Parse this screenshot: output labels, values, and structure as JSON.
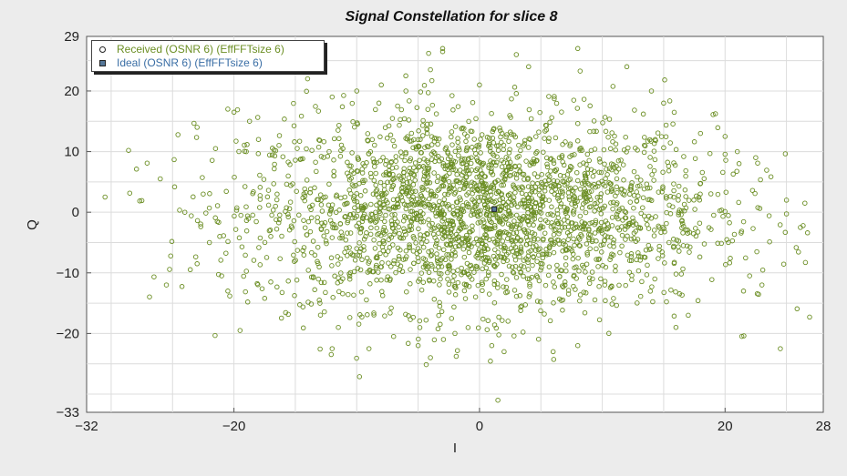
{
  "chart_data": {
    "type": "scatter",
    "title": "Signal Constellation for slice 8",
    "xlabel": "I",
    "ylabel": "Q",
    "xlim": [
      -32,
      28
    ],
    "ylim": [
      -33,
      29
    ],
    "x_ticks": [
      -32,
      -20,
      0,
      20,
      28
    ],
    "y_ticks": [
      29,
      20,
      10,
      0,
      -10,
      -20,
      -33
    ],
    "grid": true,
    "legend_position": "top-left",
    "series": [
      {
        "name": "Received (OSNR 6) (EffFFTsize 6)",
        "marker": "circle",
        "color": "#6b8e23",
        "distribution": "gaussian cloud, ~2600 points, center (0,0), sigma_I ~9.5, sigma_Q ~8",
        "points": [
          [
            -30.5,
            2.5
          ],
          [
            -26,
            5.5
          ],
          [
            -25.5,
            -12
          ],
          [
            -24,
            0
          ],
          [
            -23,
            14
          ],
          [
            -23,
            -8.5
          ],
          [
            -22.5,
            3
          ],
          [
            -22,
            -5
          ],
          [
            -21.5,
            10.5
          ],
          [
            -21,
            -10.5
          ],
          [
            -20.5,
            17
          ],
          [
            -20.5,
            -13
          ],
          [
            -20,
            16.5
          ],
          [
            -19.5,
            -19.5
          ],
          [
            -19,
            10
          ],
          [
            -18,
            12
          ],
          [
            -17,
            -11.5
          ],
          [
            -14,
            22
          ],
          [
            -13,
            -15
          ],
          [
            -12,
            19
          ],
          [
            -12,
            -22.5
          ],
          [
            -11.5,
            -19
          ],
          [
            -10,
            20
          ],
          [
            -9,
            -22.5
          ],
          [
            -8,
            21
          ],
          [
            -7,
            -20.5
          ],
          [
            -6,
            22.5
          ],
          [
            -5,
            -22
          ],
          [
            -4,
            23.5
          ],
          [
            -4,
            -24
          ],
          [
            -3,
            27
          ],
          [
            -3,
            26.5
          ],
          [
            -2,
            -20
          ],
          [
            0,
            21
          ],
          [
            1,
            -22
          ],
          [
            2,
            -23
          ],
          [
            1.5,
            -31
          ],
          [
            3,
            26
          ],
          [
            4,
            24
          ],
          [
            6,
            -23
          ],
          [
            8,
            27
          ],
          [
            8,
            -22
          ],
          [
            12,
            24
          ],
          [
            14,
            20
          ],
          [
            15,
            18
          ],
          [
            16,
            -19
          ],
          [
            17,
            -17
          ],
          [
            18,
            13
          ],
          [
            20,
            12.5
          ],
          [
            21,
            10
          ],
          [
            21.5,
            -13
          ],
          [
            22,
            -10.5
          ],
          [
            22.5,
            9
          ],
          [
            23,
            -12
          ],
          [
            24.5,
            -22.5
          ],
          [
            25,
            2
          ],
          [
            26.5,
            1.5
          ]
        ]
      },
      {
        "name": "Ideal (OSNR 6) (EffFFTsize 6)",
        "marker": "square",
        "color": "#557799",
        "points": [
          [
            1.2,
            0.5
          ]
        ]
      }
    ]
  }
}
